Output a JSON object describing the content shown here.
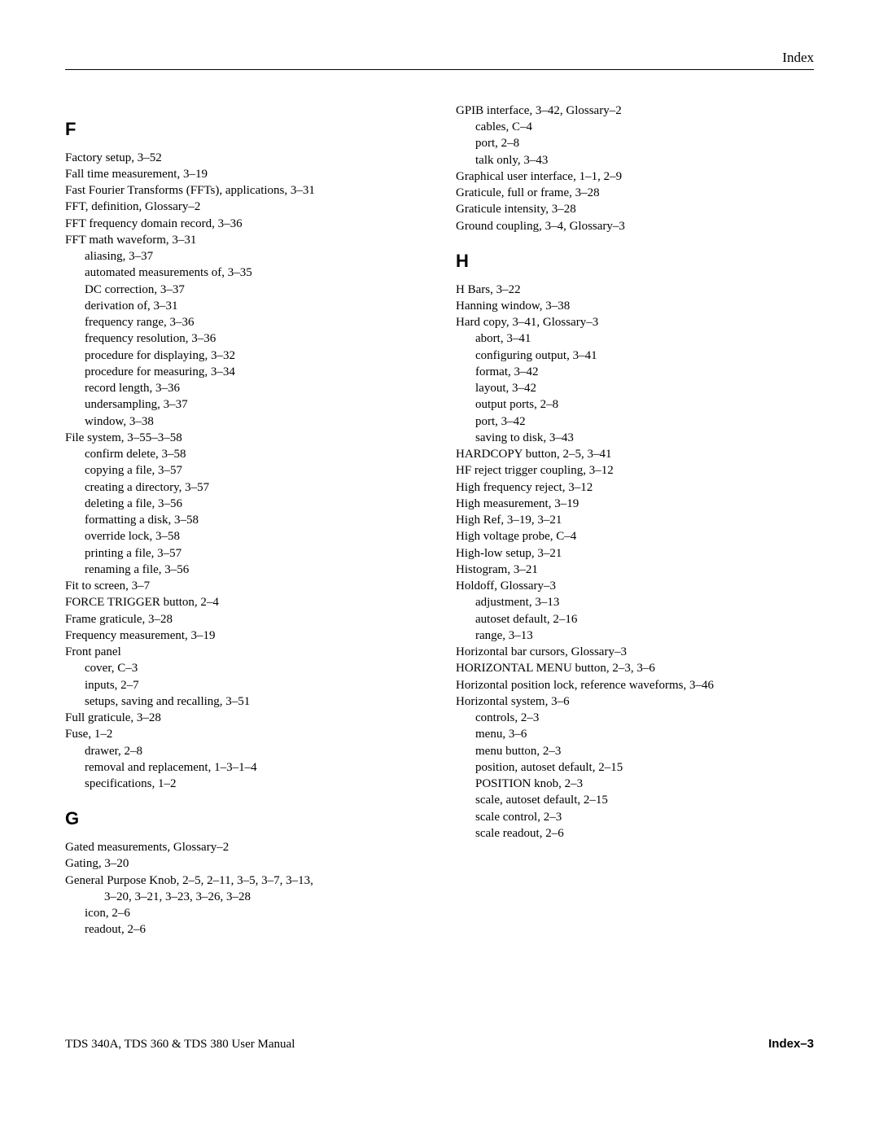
{
  "header": "Index",
  "footer": {
    "left": "TDS 340A, TDS 360 & TDS 380 User Manual",
    "right": "Index–3"
  },
  "left_col": [
    {
      "type": "letter",
      "text": "F"
    },
    {
      "type": "entry",
      "text": "Factory setup, 3–52"
    },
    {
      "type": "entry",
      "text": "Fall time measurement, 3–19"
    },
    {
      "type": "entry",
      "text": "Fast Fourier Transforms (FFTs), applications, 3–31"
    },
    {
      "type": "entry",
      "text": "FFT, definition, Glossary–2"
    },
    {
      "type": "entry",
      "text": "FFT frequency domain record, 3–36"
    },
    {
      "type": "entry",
      "text": "FFT math waveform, 3–31"
    },
    {
      "type": "sub1",
      "text": "aliasing, 3–37"
    },
    {
      "type": "sub1",
      "text": "automated measurements of, 3–35"
    },
    {
      "type": "sub1",
      "text": "DC correction, 3–37"
    },
    {
      "type": "sub1",
      "text": "derivation of, 3–31"
    },
    {
      "type": "sub1",
      "text": "frequency range, 3–36"
    },
    {
      "type": "sub1",
      "text": "frequency resolution, 3–36"
    },
    {
      "type": "sub1",
      "text": "procedure for displaying, 3–32"
    },
    {
      "type": "sub1",
      "text": "procedure for measuring, 3–34"
    },
    {
      "type": "sub1",
      "text": "record length, 3–36"
    },
    {
      "type": "sub1",
      "text": "undersampling, 3–37"
    },
    {
      "type": "sub1",
      "text": "window, 3–38"
    },
    {
      "type": "entry",
      "text": "File system, 3–55–3–58"
    },
    {
      "type": "sub1",
      "text": "confirm delete, 3–58"
    },
    {
      "type": "sub1",
      "text": "copying a file, 3–57"
    },
    {
      "type": "sub1",
      "text": "creating a directory, 3–57"
    },
    {
      "type": "sub1",
      "text": "deleting a file, 3–56"
    },
    {
      "type": "sub1",
      "text": "formatting a disk, 3–58"
    },
    {
      "type": "sub1",
      "text": "override lock, 3–58"
    },
    {
      "type": "sub1",
      "text": "printing a file, 3–57"
    },
    {
      "type": "sub1",
      "text": "renaming a file, 3–56"
    },
    {
      "type": "entry",
      "text": "Fit to screen, 3–7"
    },
    {
      "type": "entry",
      "text": "FORCE TRIGGER button, 2–4"
    },
    {
      "type": "entry",
      "text": "Frame graticule, 3–28"
    },
    {
      "type": "entry",
      "text": "Frequency measurement, 3–19"
    },
    {
      "type": "entry",
      "text": "Front panel"
    },
    {
      "type": "sub1",
      "text": "cover, C–3"
    },
    {
      "type": "sub1",
      "text": "inputs, 2–7"
    },
    {
      "type": "sub1",
      "text": "setups, saving and recalling, 3–51"
    },
    {
      "type": "entry",
      "text": "Full graticule, 3–28"
    },
    {
      "type": "entry",
      "text": "Fuse, 1–2"
    },
    {
      "type": "sub1",
      "text": "drawer, 2–8"
    },
    {
      "type": "sub1",
      "text": "removal and replacement, 1–3–1–4"
    },
    {
      "type": "sub1",
      "text": "specifications, 1–2"
    },
    {
      "type": "letter",
      "text": "G"
    },
    {
      "type": "entry",
      "text": "Gated measurements, Glossary–2"
    },
    {
      "type": "entry",
      "text": "Gating, 3–20"
    },
    {
      "type": "entry",
      "text": "General Purpose Knob, 2–5, 2–11, 3–5, 3–7, 3–13,"
    },
    {
      "type": "sub2",
      "text": "3–20, 3–21, 3–23, 3–26, 3–28"
    },
    {
      "type": "sub1",
      "text": "icon, 2–6"
    },
    {
      "type": "sub1",
      "text": "readout, 2–6"
    }
  ],
  "right_col": [
    {
      "type": "entry",
      "text": "GPIB interface, 3–42, Glossary–2"
    },
    {
      "type": "sub1",
      "text": "cables, C–4"
    },
    {
      "type": "sub1",
      "text": "port, 2–8"
    },
    {
      "type": "sub1",
      "text": "talk only, 3–43"
    },
    {
      "type": "entry",
      "text": "Graphical user interface, 1–1, 2–9"
    },
    {
      "type": "entry",
      "text": "Graticule, full or frame, 3–28"
    },
    {
      "type": "entry",
      "text": "Graticule intensity, 3–28"
    },
    {
      "type": "entry",
      "text": "Ground coupling, 3–4, Glossary–3"
    },
    {
      "type": "letter",
      "text": "H"
    },
    {
      "type": "entry",
      "text": "H Bars, 3–22"
    },
    {
      "type": "entry",
      "text": "Hanning window, 3–38"
    },
    {
      "type": "entry",
      "text": "Hard copy, 3–41, Glossary–3"
    },
    {
      "type": "sub1",
      "text": "abort, 3–41"
    },
    {
      "type": "sub1",
      "text": "configuring output, 3–41"
    },
    {
      "type": "sub1",
      "text": "format, 3–42"
    },
    {
      "type": "sub1",
      "text": "layout, 3–42"
    },
    {
      "type": "sub1",
      "text": "output ports, 2–8"
    },
    {
      "type": "sub1",
      "text": "port, 3–42"
    },
    {
      "type": "sub1",
      "text": "saving to disk, 3–43"
    },
    {
      "type": "entry",
      "text": "HARDCOPY button, 2–5, 3–41"
    },
    {
      "type": "entry",
      "text": "HF reject trigger coupling, 3–12"
    },
    {
      "type": "entry",
      "text": "High frequency reject, 3–12"
    },
    {
      "type": "entry",
      "text": "High measurement, 3–19"
    },
    {
      "type": "entry",
      "text": "High Ref, 3–19, 3–21"
    },
    {
      "type": "entry",
      "text": "High voltage probe, C–4"
    },
    {
      "type": "entry",
      "text": "High-low setup, 3–21"
    },
    {
      "type": "entry",
      "text": "Histogram, 3–21"
    },
    {
      "type": "entry",
      "text": "Holdoff, Glossary–3"
    },
    {
      "type": "sub1",
      "text": "adjustment, 3–13"
    },
    {
      "type": "sub1",
      "text": "autoset default, 2–16"
    },
    {
      "type": "sub1",
      "text": "range, 3–13"
    },
    {
      "type": "entry",
      "text": "Horizontal bar cursors, Glossary–3"
    },
    {
      "type": "entry",
      "text": "HORIZONTAL MENU button, 2–3, 3–6"
    },
    {
      "type": "entry",
      "text": "Horizontal position lock, reference waveforms, 3–46"
    },
    {
      "type": "entry",
      "text": "Horizontal system, 3–6"
    },
    {
      "type": "sub1",
      "text": "controls, 2–3"
    },
    {
      "type": "sub1",
      "text": "menu, 3–6"
    },
    {
      "type": "sub1",
      "text": "menu button, 2–3"
    },
    {
      "type": "sub1",
      "text": "position, autoset default, 2–15"
    },
    {
      "type": "sub1",
      "text": "POSITION knob, 2–3"
    },
    {
      "type": "sub1",
      "text": "scale, autoset default, 2–15"
    },
    {
      "type": "sub1",
      "text": "scale control, 2–3"
    },
    {
      "type": "sub1",
      "text": "scale readout, 2–6"
    }
  ]
}
